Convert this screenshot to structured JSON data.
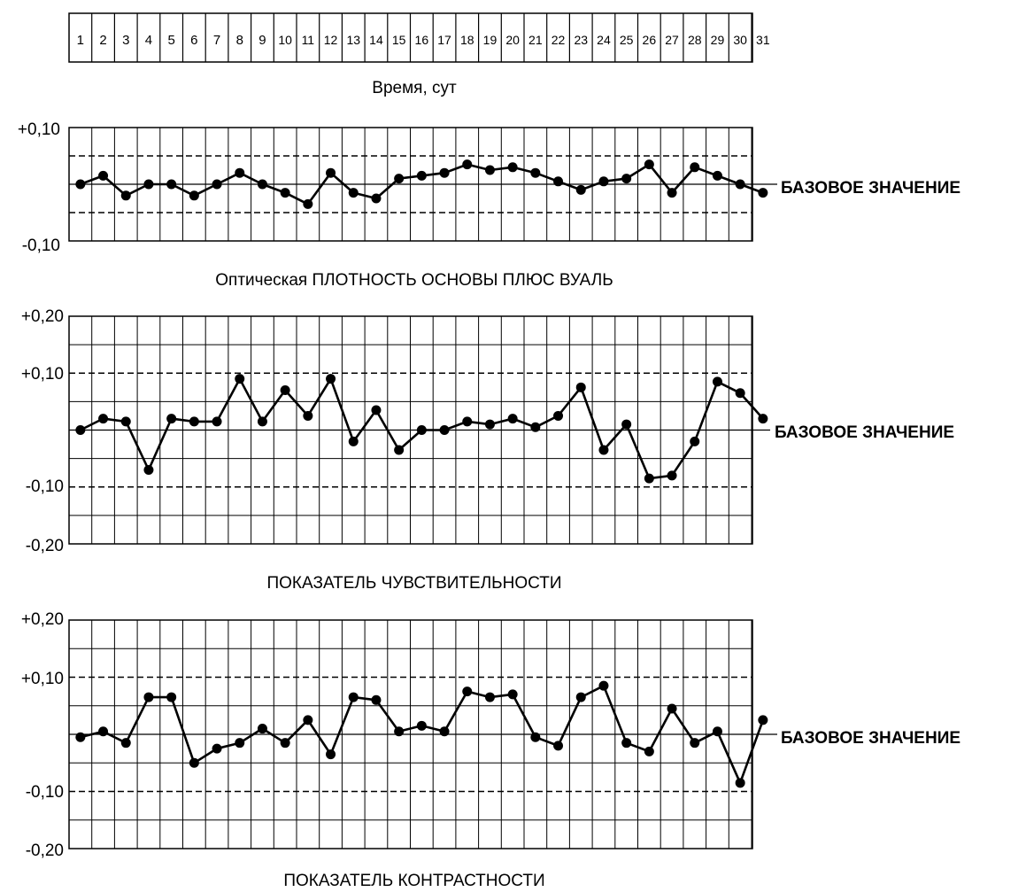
{
  "days": {
    "labels": [
      "1",
      "2",
      "3",
      "4",
      "5",
      "6",
      "7",
      "8",
      "9",
      "10",
      "11",
      "12",
      "13",
      "14",
      "15",
      "16",
      "17",
      "18",
      "19",
      "20",
      "21",
      "22",
      "23",
      "24",
      "25",
      "26",
      "27",
      "28",
      "29",
      "30",
      "31"
    ],
    "axis_label": "Время, сут"
  },
  "chart_data": [
    {
      "type": "line",
      "title": "Оптическая ПЛОТНОСТЬ ОСНОВЫ ПЛЮС ВУАЛЬ",
      "baseline_label": "БАЗОВОЕ ЗНАЧЕНИЕ",
      "y_tick_labels": [
        "+0,10",
        "-0,10"
      ],
      "ylim": [
        -0.1,
        0.1
      ],
      "dashed_limits": [
        0.05,
        -0.05
      ],
      "baseline": 0,
      "x": [
        1,
        2,
        3,
        4,
        5,
        6,
        7,
        8,
        9,
        10,
        11,
        12,
        13,
        14,
        15,
        16,
        17,
        18,
        19,
        20,
        21,
        22,
        23,
        24,
        25,
        26,
        27,
        28,
        29,
        30,
        31
      ],
      "values": [
        0.0,
        0.015,
        -0.02,
        0.0,
        0.0,
        -0.02,
        0.0,
        0.02,
        0.0,
        -0.015,
        -0.035,
        0.02,
        -0.015,
        -0.025,
        0.01,
        0.015,
        0.02,
        0.035,
        0.025,
        0.03,
        0.02,
        0.005,
        -0.01,
        0.005,
        0.01,
        0.035,
        -0.015,
        0.03,
        0.015,
        0.0,
        -0.015
      ]
    },
    {
      "type": "line",
      "title": "ПОКАЗАТЕЛЬ ЧУВСТВИТЕЛЬНОСТИ",
      "baseline_label": "БАЗОВОЕ ЗНАЧЕНИЕ",
      "y_tick_labels": [
        "+0,20",
        "+0,10",
        "-0,10",
        "-0,20"
      ],
      "ylim": [
        -0.2,
        0.2
      ],
      "dashed_limits": [
        0.1,
        -0.1
      ],
      "baseline": 0,
      "x": [
        1,
        2,
        3,
        4,
        5,
        6,
        7,
        8,
        9,
        10,
        11,
        12,
        13,
        14,
        15,
        16,
        17,
        18,
        19,
        20,
        21,
        22,
        23,
        24,
        25,
        26,
        27,
        28,
        29,
        30,
        31
      ],
      "values": [
        0.0,
        0.02,
        0.015,
        -0.07,
        0.02,
        0.015,
        0.015,
        0.09,
        0.015,
        0.07,
        0.025,
        0.09,
        -0.02,
        0.035,
        -0.035,
        0.0,
        0.0,
        0.015,
        0.01,
        0.02,
        0.005,
        0.025,
        0.075,
        -0.035,
        0.01,
        -0.085,
        -0.08,
        -0.02,
        0.085,
        0.065,
        0.02
      ]
    },
    {
      "type": "line",
      "title": "ПОКАЗАТЕЛЬ КОНТРАСТНОСТИ",
      "baseline_label": "БАЗОВОЕ ЗНАЧЕНИЕ",
      "y_tick_labels": [
        "+0,20",
        "+0,10",
        "-0,10",
        "-0,20"
      ],
      "ylim": [
        -0.2,
        0.2
      ],
      "dashed_limits": [
        0.1,
        -0.1
      ],
      "baseline": 0,
      "x": [
        1,
        2,
        3,
        4,
        5,
        6,
        7,
        8,
        9,
        10,
        11,
        12,
        13,
        14,
        15,
        16,
        17,
        18,
        19,
        20,
        21,
        22,
        23,
        24,
        25,
        26,
        27,
        28,
        29,
        30,
        31
      ],
      "values": [
        -0.005,
        0.005,
        -0.015,
        0.065,
        0.065,
        -0.05,
        -0.025,
        -0.015,
        0.01,
        -0.015,
        0.025,
        -0.035,
        0.065,
        0.06,
        0.005,
        0.015,
        0.005,
        0.075,
        0.065,
        0.07,
        -0.005,
        -0.02,
        0.065,
        0.085,
        -0.015,
        -0.03,
        0.045,
        -0.015,
        0.005,
        -0.085,
        0.025
      ]
    }
  ]
}
